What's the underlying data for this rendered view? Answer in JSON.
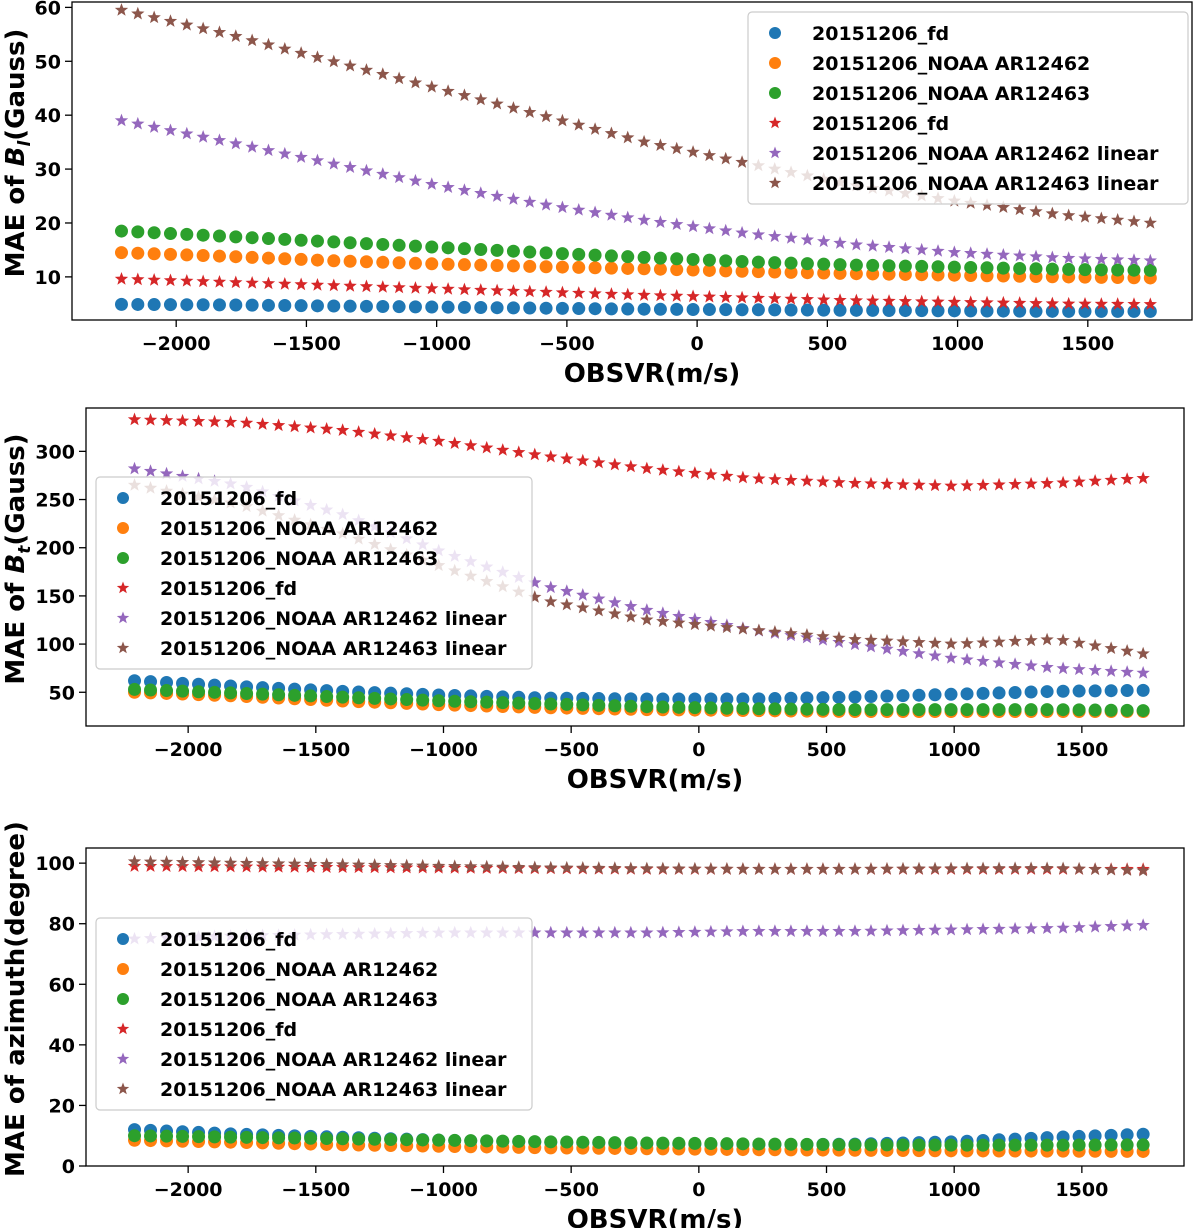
{
  "figure_title": "",
  "chart_data": [
    {
      "type": "scatter",
      "title": "",
      "xlabel": "OBSVR(m/s)",
      "ylabel_prefix": "MAE of ",
      "ylabel_symbol": "B",
      "ylabel_subscript": "l",
      "ylabel_suffix": "(Gauss)",
      "xlim": [
        -2400,
        1900
      ],
      "ylim": [
        2,
        61
      ],
      "xticks": [
        -2000,
        -1500,
        -1000,
        -500,
        0,
        500,
        1000,
        1500
      ],
      "xtick_labels": [
        "−2000",
        "−1500",
        "−1000",
        "−500",
        "0",
        "500",
        "1000",
        "1500"
      ],
      "yticks": [
        10,
        20,
        30,
        40,
        50,
        60
      ],
      "ytick_labels": [
        "10",
        "20",
        "30",
        "40",
        "50",
        "60"
      ],
      "grid": false,
      "legend_position": "upper-right",
      "x": [
        -2210,
        -1800,
        -1400,
        -1000,
        -600,
        -200,
        200,
        600,
        1000,
        1400,
        1740
      ],
      "series": [
        {
          "name": "20151206_fd",
          "marker": "circle",
          "color": "#1f77b4",
          "values": [
            4.9,
            4.8,
            4.6,
            4.4,
            4.2,
            4.0,
            3.9,
            3.8,
            3.7,
            3.6,
            3.6
          ]
        },
        {
          "name": "20151206_NOAA AR12462",
          "marker": "circle",
          "color": "#ff7f0e",
          "values": [
            14.5,
            13.8,
            13.0,
            12.4,
            11.9,
            11.5,
            11.0,
            10.6,
            10.3,
            10.0,
            9.8
          ]
        },
        {
          "name": "20151206_NOAA AR12463",
          "marker": "circle",
          "color": "#2ca02c",
          "values": [
            18.5,
            17.5,
            16.5,
            15.5,
            14.5,
            13.6,
            12.8,
            12.2,
            11.8,
            11.4,
            11.2
          ]
        },
        {
          "name": "20151206_fd",
          "marker": "star",
          "color": "#d62728",
          "values": [
            9.6,
            9.0,
            8.4,
            7.8,
            7.2,
            6.6,
            6.1,
            5.6,
            5.3,
            5.0,
            4.9
          ]
        },
        {
          "name": "20151206_NOAA AR12462 linear",
          "marker": "star",
          "color": "#9467bd",
          "values": [
            39.0,
            35.0,
            31.0,
            27.0,
            23.5,
            20.5,
            18.0,
            16.0,
            14.5,
            13.5,
            13.0
          ]
        },
        {
          "name": "20151206_NOAA AR12463 linear",
          "marker": "star",
          "color": "#8c564b",
          "values": [
            59.5,
            55.0,
            50.0,
            45.0,
            40.0,
            35.0,
            31.0,
            27.0,
            24.0,
            21.5,
            20.0
          ]
        }
      ]
    },
    {
      "type": "scatter",
      "title": "",
      "xlabel": "OBSVR(m/s)",
      "ylabel_prefix": "MAE of ",
      "ylabel_symbol": "B",
      "ylabel_subscript": "t",
      "ylabel_suffix": "(Gauss)",
      "xlim": [
        -2400,
        1900
      ],
      "ylim": [
        15,
        345
      ],
      "xticks": [
        -2000,
        -1500,
        -1000,
        -500,
        0,
        500,
        1000,
        1500
      ],
      "xtick_labels": [
        "−2000",
        "−1500",
        "−1000",
        "−500",
        "0",
        "500",
        "1000",
        "1500"
      ],
      "yticks": [
        50,
        100,
        150,
        200,
        250,
        300
      ],
      "ytick_labels": [
        "50",
        "100",
        "150",
        "200",
        "250",
        "300"
      ],
      "grid": false,
      "legend_position": "center-left",
      "x": [
        -2210,
        -1800,
        -1400,
        -1000,
        -600,
        -200,
        200,
        600,
        1000,
        1400,
        1740
      ],
      "series": [
        {
          "name": "20151206_fd",
          "marker": "circle",
          "color": "#1f77b4",
          "values": [
            62,
            56,
            51,
            47,
            44,
            43,
            43,
            45,
            48,
            51,
            52
          ]
        },
        {
          "name": "20151206_NOAA AR12462",
          "marker": "circle",
          "color": "#ff7f0e",
          "values": [
            50,
            46,
            41,
            37,
            34,
            32,
            31,
            30,
            30,
            30,
            30
          ]
        },
        {
          "name": "20151206_NOAA AR12463",
          "marker": "circle",
          "color": "#2ca02c",
          "values": [
            53,
            49,
            45,
            41,
            38,
            35,
            33,
            32,
            32,
            32,
            31
          ]
        },
        {
          "name": "20151206_fd",
          "marker": "star",
          "color": "#d62728",
          "values": [
            333,
            330,
            322,
            310,
            295,
            282,
            272,
            267,
            264,
            267,
            272
          ]
        },
        {
          "name": "20151206_NOAA AR12462 linear",
          "marker": "star",
          "color": "#9467bd",
          "values": [
            282,
            265,
            235,
            195,
            160,
            135,
            115,
            100,
            85,
            75,
            70
          ]
        },
        {
          "name": "20151206_NOAA AR12463 linear",
          "marker": "star",
          "color": "#8c564b",
          "values": [
            265,
            245,
            215,
            180,
            145,
            125,
            115,
            105,
            100,
            105,
            90
          ]
        }
      ]
    },
    {
      "type": "scatter",
      "title": "",
      "xlabel": "OBSVR(m/s)",
      "ylabel_prefix": "MAE of azimuth(degree)",
      "ylabel_symbol": "",
      "ylabel_subscript": "",
      "ylabel_suffix": "",
      "xlim": [
        -2400,
        1900
      ],
      "ylim": [
        0,
        105
      ],
      "xticks": [
        -2000,
        -1500,
        -1000,
        -500,
        0,
        500,
        1000,
        1500
      ],
      "xtick_labels": [
        "−2000",
        "−1500",
        "−1000",
        "−500",
        "0",
        "500",
        "1000",
        "1500"
      ],
      "yticks": [
        0,
        20,
        40,
        60,
        80,
        100
      ],
      "ytick_labels": [
        "0",
        "20",
        "40",
        "60",
        "80",
        "100"
      ],
      "grid": false,
      "legend_position": "center-left",
      "x": [
        -2210,
        -1800,
        -1400,
        -1000,
        -600,
        -200,
        200,
        600,
        1000,
        1400,
        1740
      ],
      "series": [
        {
          "name": "20151206_fd",
          "marker": "circle",
          "color": "#1f77b4",
          "values": [
            12,
            10.5,
            9.5,
            8.5,
            7.8,
            7.3,
            7.0,
            7.2,
            8.0,
            9.5,
            10.5
          ]
        },
        {
          "name": "20151206_NOAA AR12462",
          "marker": "circle",
          "color": "#ff7f0e",
          "values": [
            8.5,
            7.8,
            7.0,
            6.5,
            6.0,
            5.7,
            5.4,
            5.2,
            5.0,
            4.9,
            4.8
          ]
        },
        {
          "name": "20151206_NOAA AR12463",
          "marker": "circle",
          "color": "#2ca02c",
          "values": [
            10.0,
            9.5,
            9.0,
            8.5,
            8.0,
            7.6,
            7.3,
            7.0,
            6.9,
            6.9,
            7.0
          ]
        },
        {
          "name": "20151206_fd",
          "marker": "star",
          "color": "#d62728",
          "values": [
            99,
            98.8,
            98.6,
            98.4,
            98.2,
            98.0,
            98.0,
            98.0,
            98.0,
            98.0,
            98.0
          ]
        },
        {
          "name": "20151206_NOAA AR12462 linear",
          "marker": "star",
          "color": "#9467bd",
          "values": [
            75,
            76,
            76.5,
            77,
            77,
            77,
            77.5,
            77.5,
            78,
            78.5,
            79.5
          ]
        },
        {
          "name": "20151206_NOAA AR12463 linear",
          "marker": "star",
          "color": "#8c564b",
          "values": [
            100.5,
            100,
            99.5,
            99,
            98.5,
            98.2,
            98,
            98,
            98.2,
            98.3,
            97.5
          ]
        }
      ]
    }
  ]
}
